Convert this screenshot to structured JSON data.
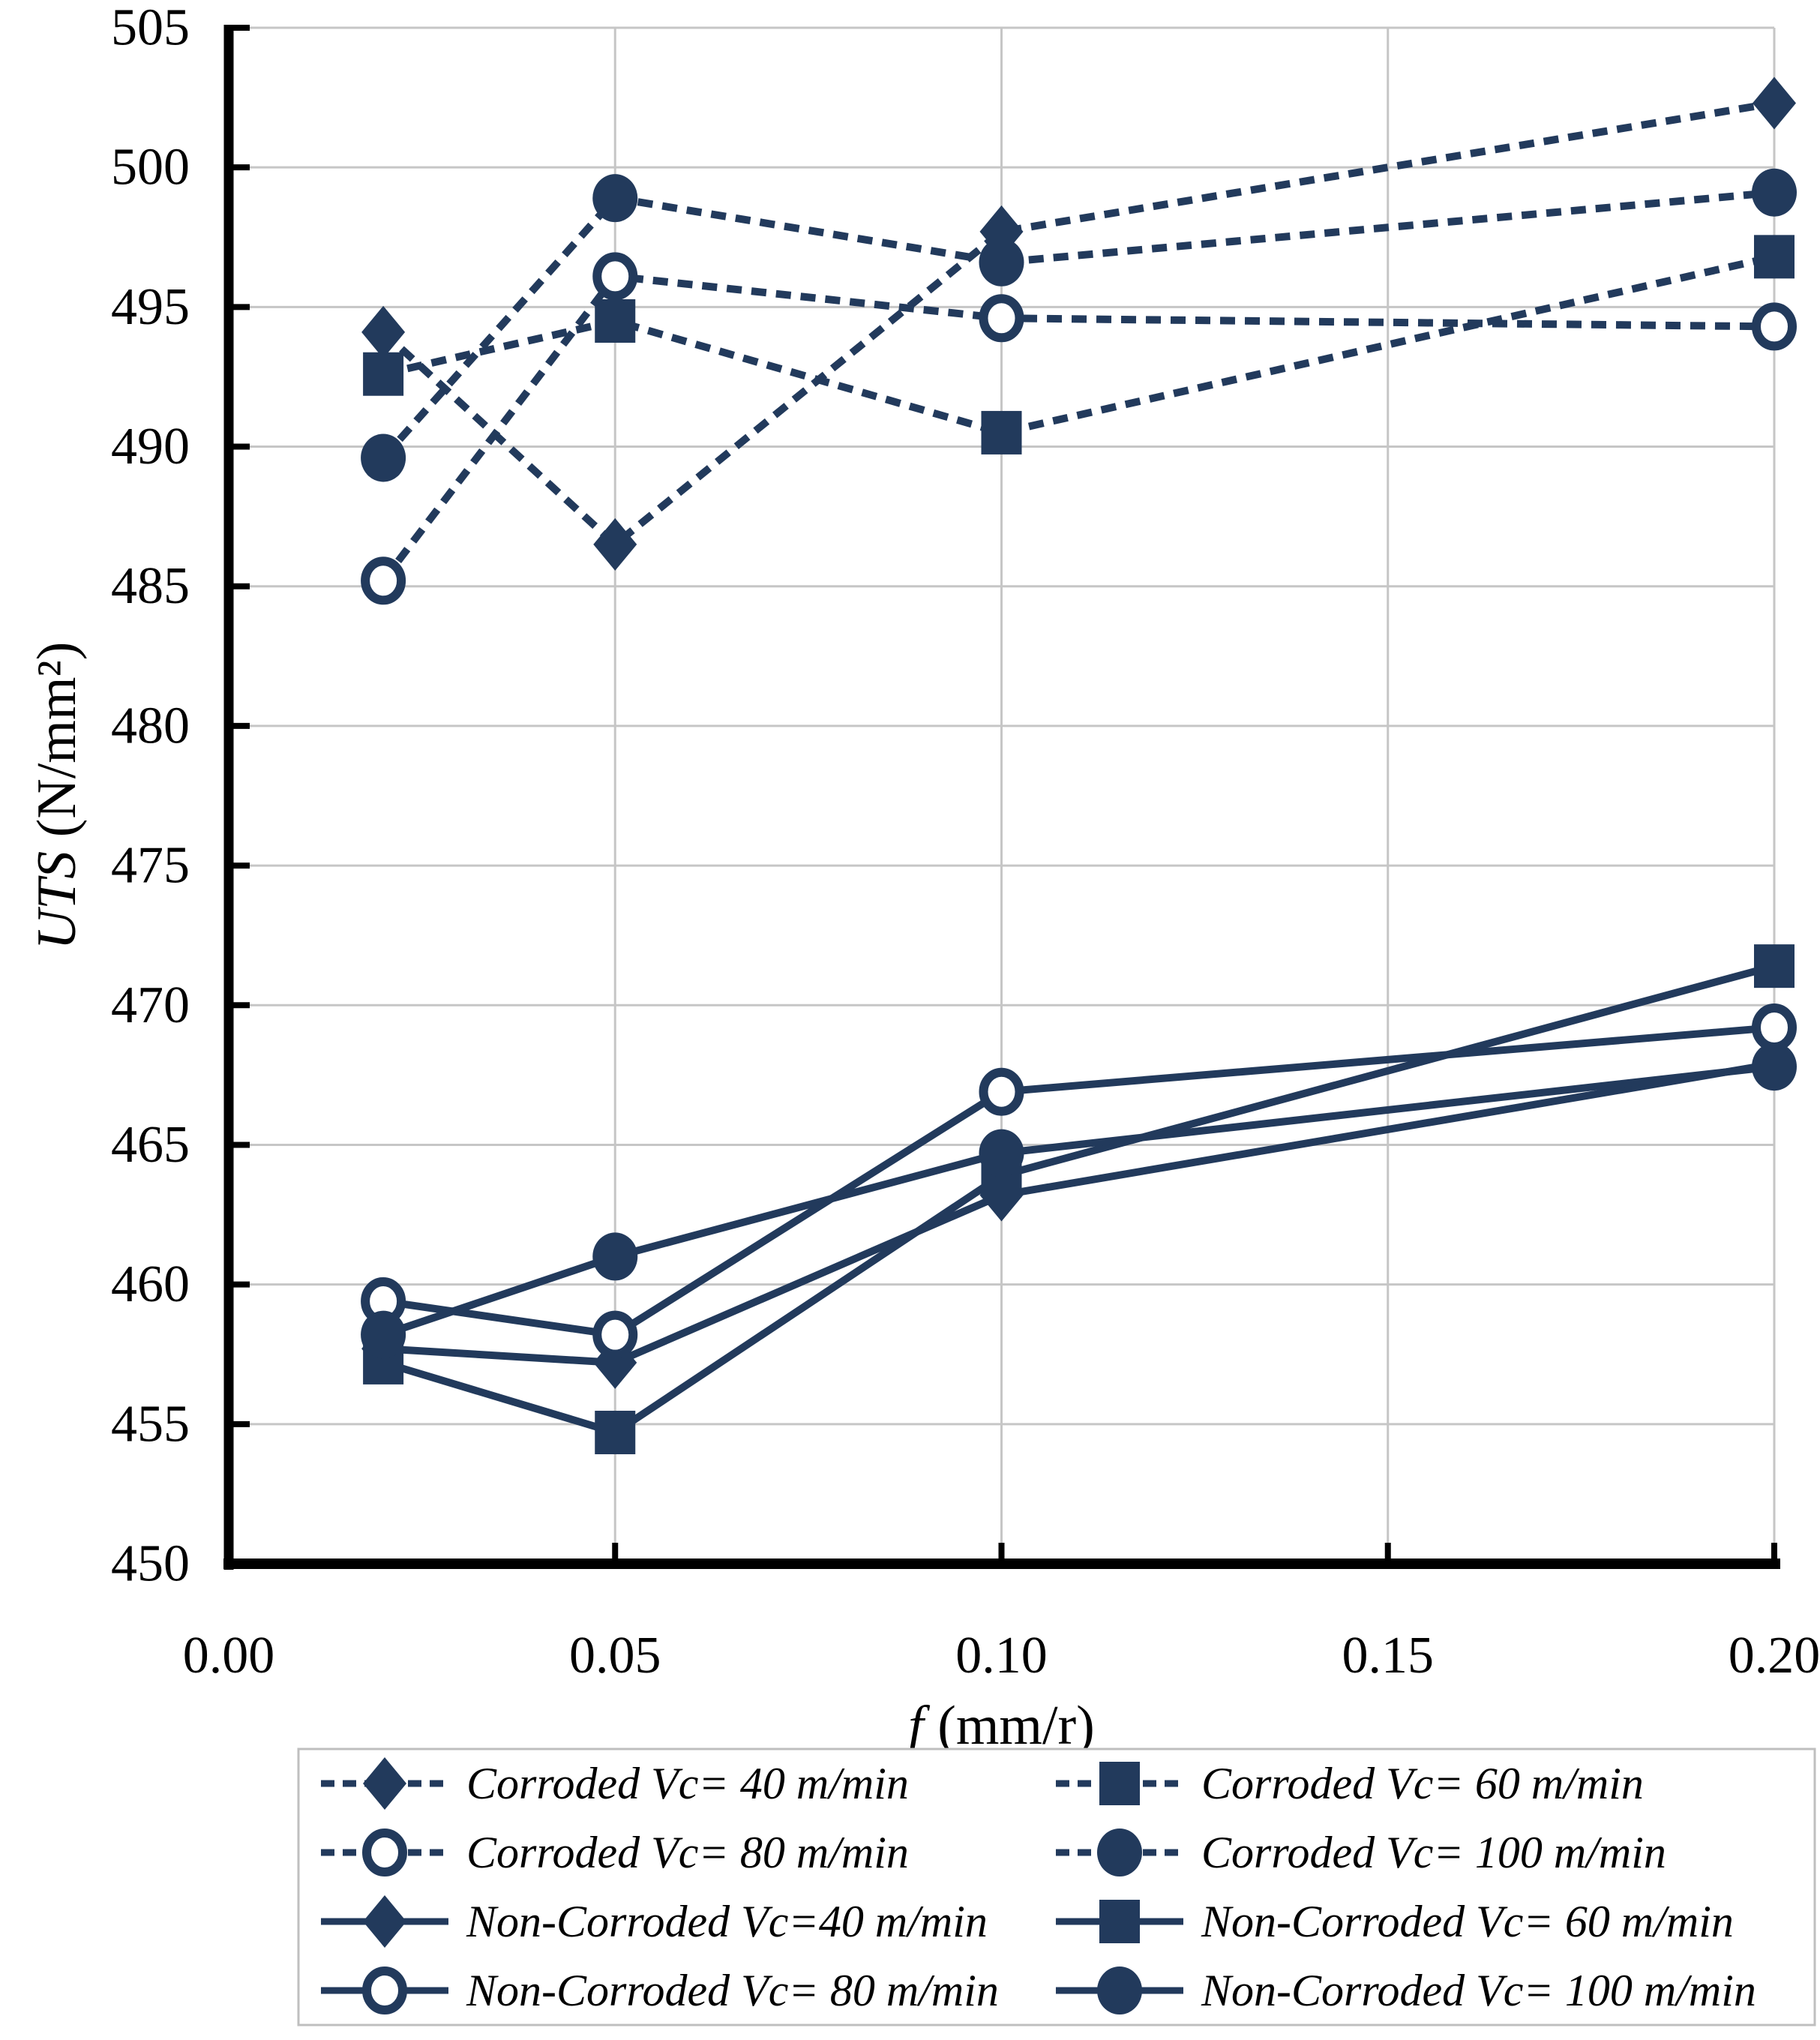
{
  "chart_data": {
    "type": "line",
    "title": "",
    "xlabel_italic": "f",
    "xlabel_unit": " (mm/r)",
    "ylabel_italic": "UTS",
    "ylabel_unit": " (N/mm²)",
    "xlim": [
      0.0,
      0.2
    ],
    "ylim": [
      450,
      505
    ],
    "x_ticks": [
      {
        "v": 0.0,
        "label": "0.00"
      },
      {
        "v": 0.05,
        "label": "0.05"
      },
      {
        "v": 0.1,
        "label": "0.10"
      },
      {
        "v": 0.15,
        "label": "0.15"
      },
      {
        "v": 0.2,
        "label": "0.20"
      }
    ],
    "y_ticks": [
      {
        "v": 450,
        "label": "450"
      },
      {
        "v": 455,
        "label": "455"
      },
      {
        "v": 460,
        "label": "460"
      },
      {
        "v": 465,
        "label": "465"
      },
      {
        "v": 470,
        "label": "470"
      },
      {
        "v": 475,
        "label": "475"
      },
      {
        "v": 480,
        "label": "480"
      },
      {
        "v": 485,
        "label": "485"
      },
      {
        "v": 490,
        "label": "490"
      },
      {
        "v": 495,
        "label": "495"
      },
      {
        "v": 500,
        "label": "500"
      },
      {
        "v": 505,
        "label": "505"
      }
    ],
    "grid": true,
    "legend_position": "bottom",
    "x": [
      0.02,
      0.05,
      0.1,
      0.2
    ],
    "series": [
      {
        "name": "Corroded Vc= 40 m/min",
        "style": "dashed",
        "marker": "diamond",
        "values": [
          494.1,
          486.5,
          497.7,
          502.3
        ]
      },
      {
        "name": "Corroded Vc= 60 m/min",
        "style": "dashed",
        "marker": "square",
        "values": [
          492.6,
          494.5,
          490.5,
          496.8
        ]
      },
      {
        "name": "Corroded Vc= 80 m/min",
        "style": "dashed",
        "marker": "circle-open",
        "values": [
          485.2,
          496.1,
          494.6,
          494.3
        ]
      },
      {
        "name": "Corroded Vc= 100 m/min",
        "style": "dashed",
        "marker": "circle",
        "values": [
          489.6,
          498.9,
          496.6,
          499.1
        ]
      },
      {
        "name": "Non-Corroded Vc=40 m/min",
        "style": "solid",
        "marker": "diamond",
        "values": [
          457.7,
          457.2,
          463.2,
          467.9
        ]
      },
      {
        "name": "Non-Corroded Vc= 60 m/min",
        "style": "solid",
        "marker": "square",
        "values": [
          457.2,
          454.7,
          463.9,
          471.4
        ]
      },
      {
        "name": "Non-Corroded Vc= 80 m/min",
        "style": "solid",
        "marker": "circle-open",
        "values": [
          459.4,
          458.2,
          466.9,
          469.2
        ]
      },
      {
        "name": "Non-Corroded Vc= 100 m/min",
        "style": "solid",
        "marker": "circle",
        "values": [
          458.2,
          461.0,
          464.7,
          467.8
        ]
      }
    ],
    "colors": {
      "series": "#223a5c",
      "gridline": "#c6c6c6",
      "axis": "#000000",
      "text": "#000000",
      "legend_border": "#bfbfbf",
      "background": "#ffffff"
    }
  }
}
